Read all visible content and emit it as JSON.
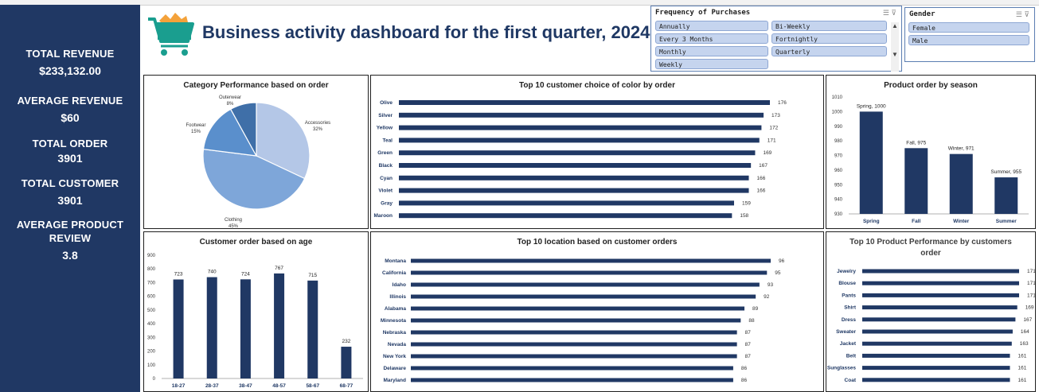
{
  "kpis": [
    {
      "label": "TOTAL REVENUE",
      "value": "$233,132.00"
    },
    {
      "label": "AVERAGE REVENUE",
      "value": "$60"
    },
    {
      "label": "TOTAL ORDER",
      "value": "3901"
    },
    {
      "label": "TOTAL CUSTOMER",
      "value": "3901"
    },
    {
      "label": "AVERAGE  PRODUCT",
      "label2": "REVIEW",
      "value": "3.8"
    }
  ],
  "title": "Business activity dashboard for the first quarter, 2024.",
  "slicers": {
    "frequency": {
      "title": "Frequency of Purchases",
      "items": [
        "Annually",
        "Bi-Weekly",
        "Every 3 Months",
        "Fortnightly",
        "Monthly",
        "Quarterly",
        "Weekly"
      ]
    },
    "gender": {
      "title": "Gender",
      "items": [
        "Female",
        "Male"
      ]
    }
  },
  "colors": {
    "navy": "#203864",
    "bar": "#203864",
    "accent": "#1f3864",
    "pie": [
      "#b4c7e7",
      "#7ea6d9",
      "#5a8fcc",
      "#3f6fa8"
    ]
  },
  "chart_data": [
    {
      "id": "category",
      "type": "pie",
      "title": "Category Performance based on order",
      "labels": [
        "Accessories",
        "Clothing",
        "Footwear",
        "Outerwear"
      ],
      "values": [
        32,
        45,
        15,
        8
      ],
      "value_labels": [
        "32%",
        "45%",
        "15%",
        "8%"
      ]
    },
    {
      "id": "color",
      "type": "bar",
      "orientation": "horizontal",
      "title": "Top 10  customer choice of color by order",
      "categories": [
        "Olive",
        "Silver",
        "Yellow",
        "Teal",
        "Green",
        "Black",
        "Cyan",
        "Violet",
        "Gray",
        "Maroon"
      ],
      "values": [
        176,
        173,
        172,
        171,
        169,
        167,
        166,
        166,
        159,
        158
      ]
    },
    {
      "id": "season",
      "type": "bar",
      "title": "Product order  by season",
      "categories": [
        "Spring",
        "Fall",
        "Winter",
        "Summer"
      ],
      "values": [
        1000,
        975,
        971,
        955
      ],
      "data_labels": [
        "Spring, 1000",
        "Fall, 975",
        "Winter, 971",
        "Summer, 955"
      ],
      "ylim": [
        930,
        1010
      ],
      "yticks": [
        930,
        940,
        950,
        960,
        970,
        980,
        990,
        1000,
        1010
      ]
    },
    {
      "id": "age",
      "type": "bar",
      "title": "Customer order based  on age",
      "categories": [
        "18-27",
        "28-37",
        "38-47",
        "48-57",
        "58-67",
        "68-77"
      ],
      "values": [
        723,
        740,
        724,
        767,
        715,
        232
      ],
      "ylim": [
        0,
        900
      ],
      "yticks": [
        0,
        100,
        200,
        300,
        400,
        500,
        600,
        700,
        800,
        900
      ]
    },
    {
      "id": "location",
      "type": "bar",
      "orientation": "horizontal",
      "title": "Top 10 location based  on customer orders",
      "categories": [
        "Montana",
        "California",
        "Idaho",
        "Illinois",
        "Alabama",
        "Minnesota",
        "Nebraska",
        "Nevada",
        "New York",
        "Delaware",
        "Maryland"
      ],
      "values": [
        96,
        95,
        93,
        92,
        89,
        88,
        87,
        87,
        87,
        86,
        86
      ]
    },
    {
      "id": "product",
      "type": "bar",
      "orientation": "horizontal",
      "title": "Top 10 Product Performance by customers",
      "title2": "order",
      "categories": [
        "Jewelry",
        "Blouse",
        "Pants",
        "Shirt",
        "Dress",
        "Sweater",
        "Jacket",
        "Belt",
        "Sunglasses",
        "Coat"
      ],
      "values": [
        171,
        171,
        171,
        169,
        167,
        164,
        163,
        161,
        161,
        161
      ]
    }
  ]
}
